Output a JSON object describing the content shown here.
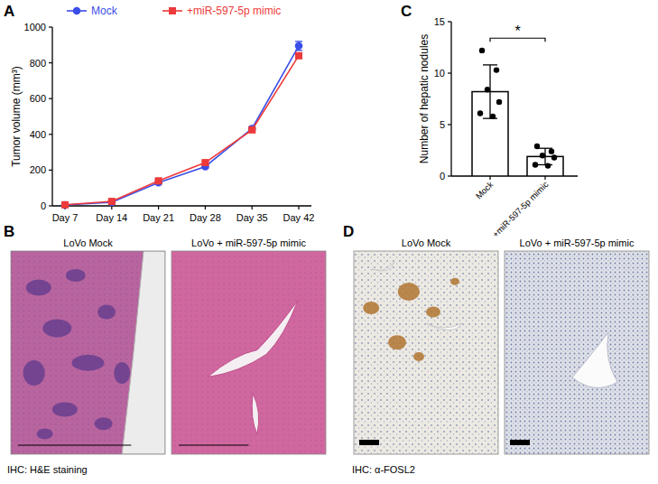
{
  "chart_data": [
    {
      "panel": "A",
      "type": "line",
      "categories": [
        "Day 7",
        "Day 14",
        "Day 21",
        "Day 28",
        "Day 35",
        "Day 42"
      ],
      "y_label": "Tumor volume (mm³)",
      "ylim": [
        0,
        1000
      ],
      "yticks": [
        0,
        200,
        400,
        600,
        800,
        1000
      ],
      "legend": "top",
      "series": [
        {
          "name": "Mock",
          "color": "#3a4ee8",
          "marker": "circle",
          "values": [
            5,
            20,
            130,
            220,
            432,
            895
          ],
          "errors": [
            2,
            3,
            6,
            8,
            10,
            25
          ]
        },
        {
          "name": "+miR-597-5p mimic",
          "color": "#ee3a3a",
          "marker": "square",
          "values": [
            6,
            25,
            140,
            242,
            425,
            840
          ],
          "errors": [
            2,
            3,
            6,
            8,
            8,
            15
          ]
        }
      ]
    },
    {
      "panel": "C",
      "type": "bar",
      "categories": [
        "Mock",
        "+miR-597-5p mimic"
      ],
      "y_label": "Number of hepatic nodules",
      "ylim": [
        0,
        15
      ],
      "yticks": [
        0,
        5,
        10,
        15
      ],
      "color": "#ffffff",
      "values": [
        8.2,
        1.9
      ],
      "errors": [
        2.6,
        0.8
      ],
      "points": [
        [
          12.2,
          10.3,
          8.4,
          7.2,
          6.1,
          5.8
        ],
        [
          2.9,
          2.4,
          2.0,
          1.8,
          1.1,
          1.0
        ]
      ],
      "annotations": [
        "*"
      ]
    }
  ],
  "images": [
    {
      "panel": "B",
      "captions": [
        "LoVo Mock",
        "LoVo + miR-597-5p mimic"
      ],
      "footer": "IHC: H&E staining"
    },
    {
      "panel": "D",
      "captions": [
        "LoVo Mock",
        "LoVo + miR-597-5p mimic"
      ],
      "footer": "IHC: α-FOSL2"
    }
  ]
}
